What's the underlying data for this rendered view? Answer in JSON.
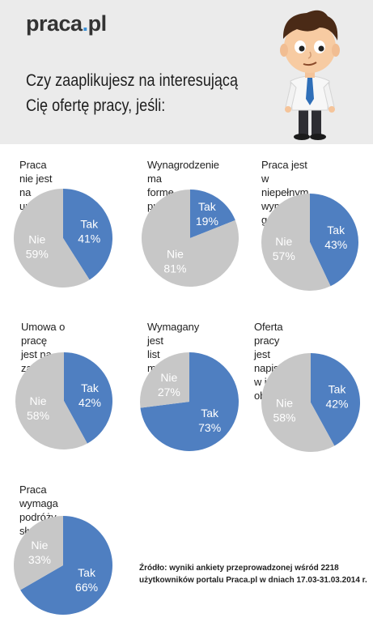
{
  "header": {
    "logo_main": "praca",
    "logo_dot": ".",
    "logo_tld": "pl",
    "question_line1": "Czy zaaplikujesz na interesującą",
    "question_line2": "Cię ofertę pracy, jeśli:"
  },
  "colors": {
    "tak": "#4f7fc1",
    "nie": "#c7c7c7",
    "header_bg": "#ebebeb",
    "logo_dot": "#3a8fd6"
  },
  "chart_data": [
    {
      "type": "pie",
      "title": "Praca nie jest\nna umowę o pracę?",
      "labels": [
        "Tak",
        "Nie"
      ],
      "values": [
        41,
        59
      ]
    },
    {
      "type": "pie",
      "title": "Wynagrodzenie ma\nformę prowizyjną?",
      "labels": [
        "Tak",
        "Nie"
      ],
      "values": [
        19,
        81
      ]
    },
    {
      "type": "pie",
      "title": "Praca jest w niepełnym\nwymiarze godzin?",
      "labels": [
        "Tak",
        "Nie"
      ],
      "values": [
        43,
        57
      ]
    },
    {
      "type": "pie",
      "title": "Umowa o pracę\njest na zastępstwo?",
      "labels": [
        "Tak",
        "Nie"
      ],
      "values": [
        42,
        58
      ]
    },
    {
      "type": "pie",
      "title": "Wymagany jest\nlist motywacyjny?",
      "labels": [
        "Tak",
        "Nie"
      ],
      "values": [
        73,
        27
      ]
    },
    {
      "type": "pie",
      "title": "Oferta pracy jest\nnapisana w języku obcym?",
      "labels": [
        "Tak",
        "Nie"
      ],
      "values": [
        42,
        58
      ]
    },
    {
      "type": "pie",
      "title": "Praca wymaga\npodróży służbowych?",
      "labels": [
        "Tak",
        "Nie"
      ],
      "values": [
        66,
        33
      ]
    }
  ],
  "source": {
    "label": "Źródło:",
    "text": " wyniki ankiety przeprowadzonej wśród 2218 użytkowników portalu Praca.pl w dniach 17.03-31.03.2014 r."
  }
}
